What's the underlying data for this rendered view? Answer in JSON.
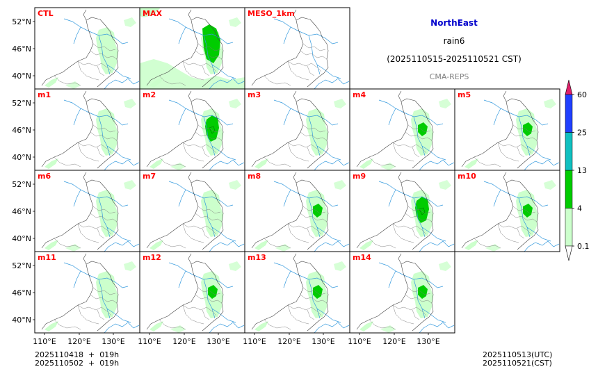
{
  "header": {
    "region": "NorthEast",
    "variable": "rain6",
    "period": "(2025110515-2025110521 CST)",
    "model": "CMA-REPS"
  },
  "panels": [
    {
      "label": "CTL",
      "intensity": 1
    },
    {
      "label": "MAX",
      "intensity": 4
    },
    {
      "label": "MESO_1km",
      "intensity": 0
    },
    {
      "label": "m1",
      "intensity": 1
    },
    {
      "label": "m2",
      "intensity": 3
    },
    {
      "label": "m3",
      "intensity": 1
    },
    {
      "label": "m4",
      "intensity": 2
    },
    {
      "label": "m5",
      "intensity": 2
    },
    {
      "label": "m6",
      "intensity": 1
    },
    {
      "label": "m7",
      "intensity": 1
    },
    {
      "label": "m8",
      "intensity": 2
    },
    {
      "label": "m9",
      "intensity": 3
    },
    {
      "label": "m10",
      "intensity": 2
    },
    {
      "label": "m11",
      "intensity": 1
    },
    {
      "label": "m12",
      "intensity": 2
    },
    {
      "label": "m13",
      "intensity": 2
    },
    {
      "label": "m14",
      "intensity": 2
    }
  ],
  "axes": {
    "lat_ticks": [
      "52°N",
      "46°N",
      "40°N"
    ],
    "lon_ticks": [
      "110°E",
      "120°E",
      "130°E"
    ]
  },
  "colorbar": {
    "levels": [
      "0.1",
      "4",
      "13",
      "25",
      "60"
    ],
    "colors": [
      "#ccffcc",
      "#00cc00",
      "#10c0c0",
      "#2040ff",
      "#e0206a"
    ]
  },
  "footer": {
    "init_utc": "2025110418  +  019h",
    "init_cst": "2025110502  +  019h",
    "valid_utc": "2025110513(UTC)",
    "valid_cst": "2025110521(CST)"
  },
  "colors": {
    "label": "#ff0000",
    "region_title": "#0000cc",
    "model_text": "#808080",
    "border": "#444444",
    "river": "#3399dd"
  }
}
